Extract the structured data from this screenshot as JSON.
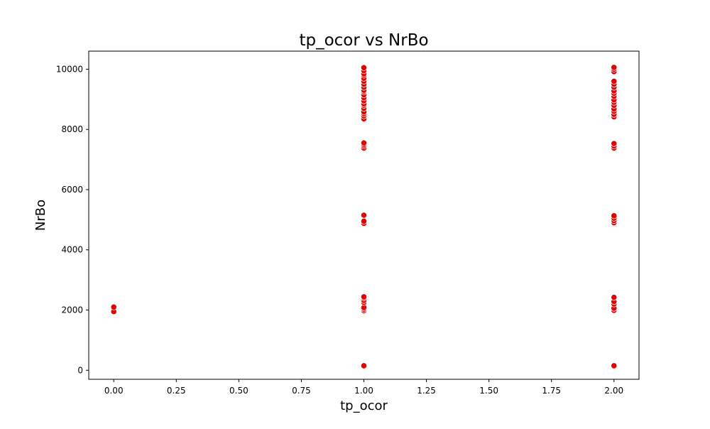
{
  "chart_data": {
    "type": "scatter",
    "title": "tp_ocor vs NrBo",
    "xlabel": "tp_ocor",
    "ylabel": "NrBo",
    "xlim": [
      -0.1,
      2.1
    ],
    "ylim": [
      -300,
      10600
    ],
    "x_ticks": [
      0.0,
      0.25,
      0.5,
      0.75,
      1.0,
      1.25,
      1.5,
      1.75,
      2.0
    ],
    "x_tick_labels": [
      "0.00",
      "0.25",
      "0.50",
      "0.75",
      "1.00",
      "1.25",
      "1.50",
      "1.75",
      "2.00"
    ],
    "y_ticks": [
      0,
      2000,
      4000,
      6000,
      8000,
      10000
    ],
    "y_tick_labels": [
      "0",
      "2000",
      "4000",
      "6000",
      "8000",
      "10000"
    ],
    "grid": false,
    "marker_color": "#e60000",
    "marker_edge_color": "#ffffff",
    "series": [
      {
        "points": [
          {
            "x": 0,
            "y": 1950
          },
          {
            "x": 0,
            "y": 2100
          },
          {
            "x": 1,
            "y": 150
          },
          {
            "x": 1,
            "y": 1980
          },
          {
            "x": 1,
            "y": 2030
          },
          {
            "x": 1,
            "y": 2080
          },
          {
            "x": 1,
            "y": 2250
          },
          {
            "x": 1,
            "y": 2320
          },
          {
            "x": 1,
            "y": 2400
          },
          {
            "x": 1,
            "y": 2440
          },
          {
            "x": 1,
            "y": 4880
          },
          {
            "x": 1,
            "y": 4950
          },
          {
            "x": 1,
            "y": 5150
          },
          {
            "x": 1,
            "y": 7380
          },
          {
            "x": 1,
            "y": 7450
          },
          {
            "x": 1,
            "y": 7500
          },
          {
            "x": 1,
            "y": 7550
          },
          {
            "x": 1,
            "y": 8350
          },
          {
            "x": 1,
            "y": 8450
          },
          {
            "x": 1,
            "y": 8520
          },
          {
            "x": 1,
            "y": 8580
          },
          {
            "x": 1,
            "y": 8700
          },
          {
            "x": 1,
            "y": 8800
          },
          {
            "x": 1,
            "y": 8850
          },
          {
            "x": 1,
            "y": 8950
          },
          {
            "x": 1,
            "y": 9050
          },
          {
            "x": 1,
            "y": 9150
          },
          {
            "x": 1,
            "y": 9250
          },
          {
            "x": 1,
            "y": 9300
          },
          {
            "x": 1,
            "y": 9400
          },
          {
            "x": 1,
            "y": 9500
          },
          {
            "x": 1,
            "y": 9600
          },
          {
            "x": 1,
            "y": 9700
          },
          {
            "x": 1,
            "y": 9800
          },
          {
            "x": 1,
            "y": 9850
          },
          {
            "x": 1,
            "y": 9950
          },
          {
            "x": 1,
            "y": 10050
          },
          {
            "x": 2,
            "y": 150
          },
          {
            "x": 2,
            "y": 1990
          },
          {
            "x": 2,
            "y": 2060
          },
          {
            "x": 2,
            "y": 2200
          },
          {
            "x": 2,
            "y": 2280
          },
          {
            "x": 2,
            "y": 2420
          },
          {
            "x": 2,
            "y": 4900
          },
          {
            "x": 2,
            "y": 4970
          },
          {
            "x": 2,
            "y": 5050
          },
          {
            "x": 2,
            "y": 5130
          },
          {
            "x": 2,
            "y": 7380
          },
          {
            "x": 2,
            "y": 7450
          },
          {
            "x": 2,
            "y": 7530
          },
          {
            "x": 2,
            "y": 8420
          },
          {
            "x": 2,
            "y": 8500
          },
          {
            "x": 2,
            "y": 8600
          },
          {
            "x": 2,
            "y": 8680
          },
          {
            "x": 2,
            "y": 8800
          },
          {
            "x": 2,
            "y": 8900
          },
          {
            "x": 2,
            "y": 8980
          },
          {
            "x": 2,
            "y": 9100
          },
          {
            "x": 2,
            "y": 9200
          },
          {
            "x": 2,
            "y": 9280
          },
          {
            "x": 2,
            "y": 9400
          },
          {
            "x": 2,
            "y": 9500
          },
          {
            "x": 2,
            "y": 9600
          },
          {
            "x": 2,
            "y": 9920
          },
          {
            "x": 2,
            "y": 10000
          },
          {
            "x": 2,
            "y": 10060
          }
        ]
      }
    ]
  }
}
